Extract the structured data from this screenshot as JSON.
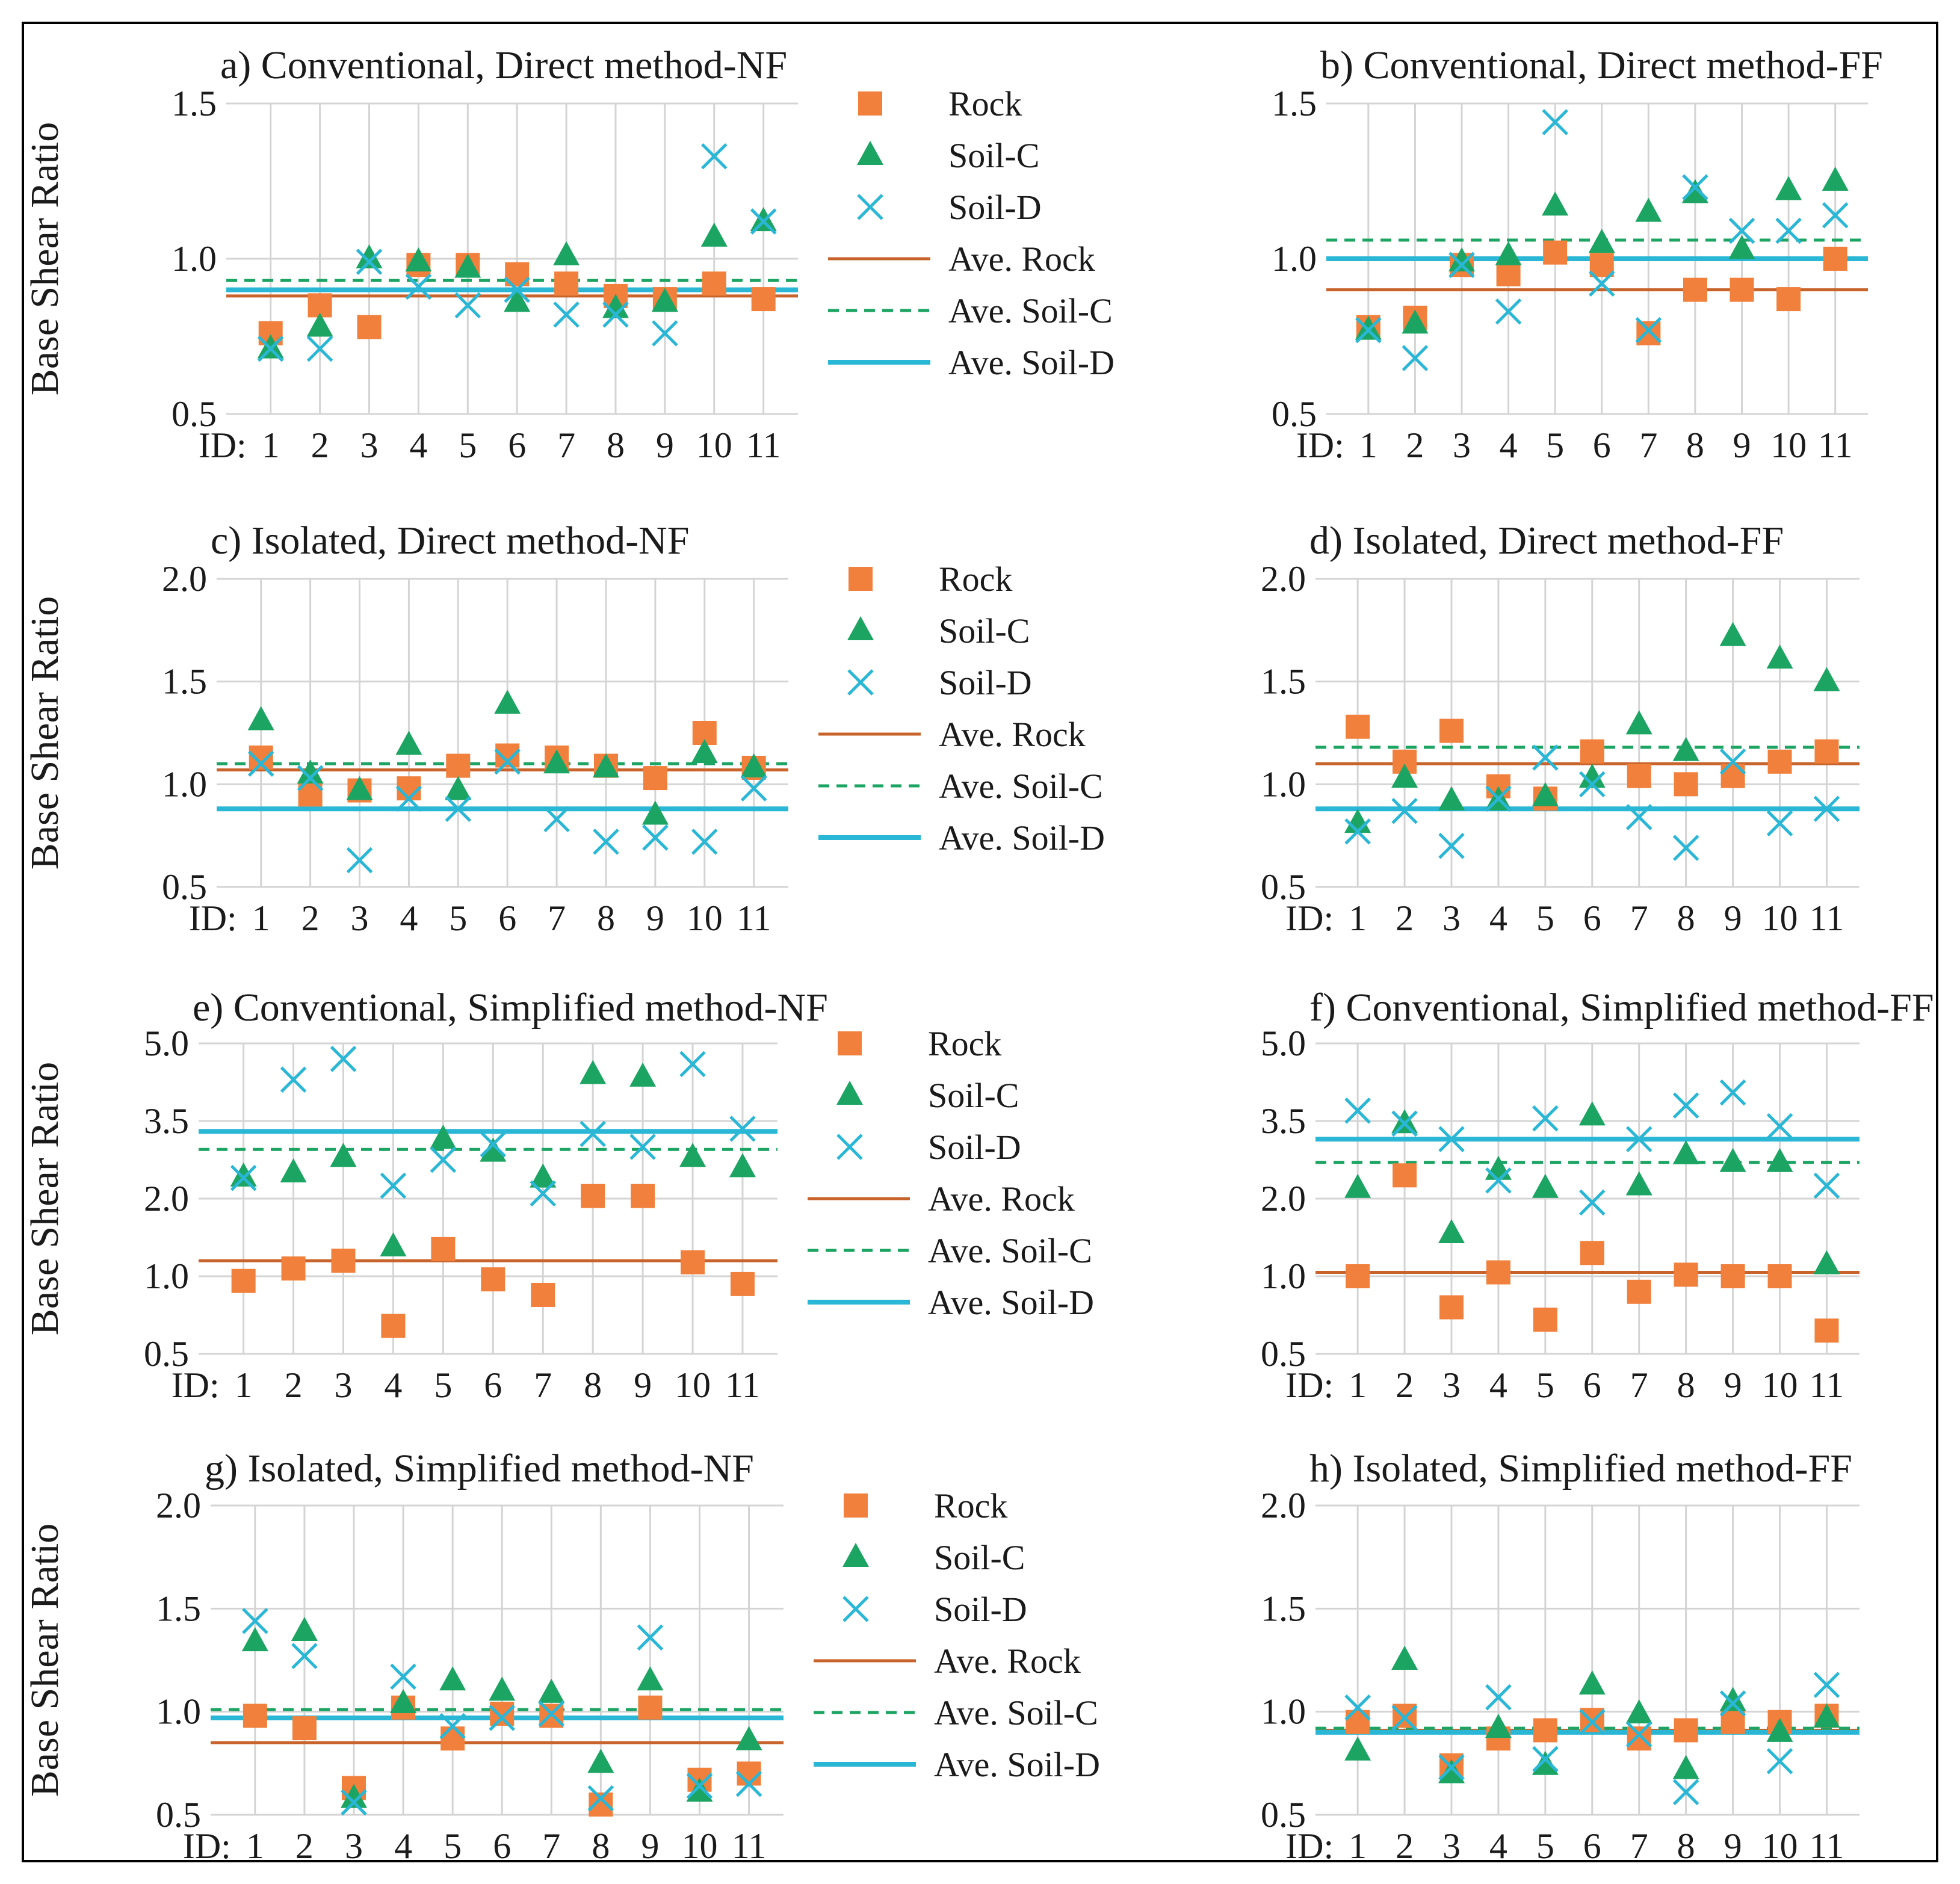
{
  "colors": {
    "rock": "#f0803c",
    "soilC": "#1ca463",
    "soilD": "#2ab7d6",
    "aveRock": "#c8642b",
    "grid": "#d4d4d4"
  },
  "legend_labels": [
    "Rock",
    "Soil-C",
    "Soil-D",
    "Ave. Rock",
    "Ave. Soil-C",
    "Ave. Soil-D"
  ],
  "chart_data": [
    {
      "type": "scatter",
      "title": "a) Conventional, Direct method-NF",
      "ylabel": "Base Shear Ratio",
      "ylim": [
        0.5,
        1.5
      ],
      "yticks": [
        "0.5",
        "1.0",
        "1.5"
      ],
      "xlabel_prefix": "ID:",
      "categories": [
        "1",
        "2",
        "3",
        "4",
        "5",
        "6",
        "7",
        "8",
        "9",
        "10",
        "11"
      ],
      "series": [
        {
          "name": "Rock",
          "marker": "square",
          "values": [
            0.76,
            0.85,
            0.78,
            0.98,
            0.98,
            0.95,
            0.92,
            0.88,
            0.87,
            0.92,
            0.87
          ]
        },
        {
          "name": "Soil-C",
          "marker": "triangle",
          "values": [
            0.71,
            0.78,
            1.0,
            0.99,
            0.97,
            0.86,
            1.01,
            0.84,
            0.86,
            1.07,
            1.12
          ]
        },
        {
          "name": "Soil-D",
          "marker": "x",
          "values": [
            0.71,
            0.71,
            0.99,
            0.91,
            0.85,
            0.9,
            0.82,
            0.82,
            0.76,
            1.33,
            1.12
          ]
        }
      ],
      "averages": {
        "Ave. Rock": 0.88,
        "Ave. Soil-C": 0.93,
        "Ave. Soil-D": 0.9
      },
      "legend": true
    },
    {
      "type": "scatter",
      "title": "b) Conventional, Direct method-FF",
      "ylabel": "",
      "ylim": [
        0.5,
        1.5
      ],
      "yticks": [
        "0.5",
        "1.0",
        "1.5"
      ],
      "xlabel_prefix": "ID:",
      "categories": [
        "1",
        "2",
        "3",
        "4",
        "5",
        "6",
        "7",
        "8",
        "9",
        "10",
        "11"
      ],
      "series": [
        {
          "name": "Rock",
          "marker": "square",
          "values": [
            0.78,
            0.81,
            0.98,
            0.95,
            1.02,
            0.98,
            0.76,
            0.9,
            0.9,
            0.87,
            1.0
          ]
        },
        {
          "name": "Soil-C",
          "marker": "triangle",
          "values": [
            0.77,
            0.79,
            0.99,
            1.01,
            1.17,
            1.05,
            1.15,
            1.21,
            1.03,
            1.22,
            1.25
          ]
        },
        {
          "name": "Soil-D",
          "marker": "x",
          "values": [
            0.77,
            0.68,
            0.98,
            0.83,
            1.44,
            0.92,
            0.77,
            1.23,
            1.09,
            1.09,
            1.14
          ]
        }
      ],
      "averages": {
        "Ave. Rock": 0.9,
        "Ave. Soil-C": 1.06,
        "Ave. Soil-D": 1.0
      },
      "legend": false
    },
    {
      "type": "scatter",
      "title": "c) Isolated, Direct method-NF",
      "ylabel": "Base Shear Ratio",
      "ylim": [
        0.5,
        2.0
      ],
      "yticks": [
        "0.5",
        "1.0",
        "1.5",
        "2.0"
      ],
      "xlabel_prefix": "ID:",
      "categories": [
        "1",
        "2",
        "3",
        "4",
        "5",
        "6",
        "7",
        "8",
        "9",
        "10",
        "11"
      ],
      "series": [
        {
          "name": "Rock",
          "marker": "square",
          "values": [
            1.13,
            0.95,
            0.97,
            0.98,
            1.09,
            1.14,
            1.13,
            1.09,
            1.03,
            1.25,
            1.08
          ]
        },
        {
          "name": "Soil-C",
          "marker": "triangle",
          "values": [
            1.31,
            1.05,
            0.97,
            1.19,
            0.97,
            1.39,
            1.1,
            1.08,
            0.85,
            1.15,
            1.08
          ]
        },
        {
          "name": "Soil-D",
          "marker": "x",
          "values": [
            1.1,
            1.03,
            0.63,
            0.93,
            0.88,
            1.11,
            0.83,
            0.72,
            0.74,
            0.72,
            0.98
          ]
        }
      ],
      "averages": {
        "Ave. Rock": 1.07,
        "Ave. Soil-C": 1.1,
        "Ave. Soil-D": 0.88
      },
      "legend": true
    },
    {
      "type": "scatter",
      "title": "d) Isolated, Direct method-FF",
      "ylabel": "",
      "ylim": [
        0.5,
        2.0
      ],
      "yticks": [
        "0.5",
        "1.0",
        "1.5",
        "2.0"
      ],
      "xlabel_prefix": "ID:",
      "categories": [
        "1",
        "2",
        "3",
        "4",
        "5",
        "6",
        "7",
        "8",
        "9",
        "10",
        "11"
      ],
      "series": [
        {
          "name": "Rock",
          "marker": "square",
          "values": [
            1.28,
            1.11,
            1.26,
            0.99,
            0.93,
            1.16,
            1.04,
            1.0,
            1.04,
            1.11,
            1.16
          ]
        },
        {
          "name": "Soil-C",
          "marker": "triangle",
          "values": [
            0.81,
            1.03,
            0.92,
            0.92,
            0.94,
            1.03,
            1.29,
            1.16,
            1.72,
            1.61,
            1.5
          ]
        },
        {
          "name": "Soil-D",
          "marker": "x",
          "values": [
            0.77,
            0.87,
            0.7,
            0.93,
            1.13,
            1.0,
            0.84,
            0.69,
            1.11,
            0.81,
            0.88
          ]
        }
      ],
      "averages": {
        "Ave. Rock": 1.1,
        "Ave. Soil-C": 1.18,
        "Ave. Soil-D": 0.88
      },
      "legend": false
    },
    {
      "type": "scatter",
      "title": "e) Conventional, Simplified method-NF",
      "ylabel": "Base Shear Ratio",
      "ylim": [
        0.5,
        5.0
      ],
      "yticks": [
        "0.5",
        "1.0",
        "2.0",
        "3.5",
        "5.0"
      ],
      "xlabel_prefix": "ID:",
      "categories": [
        "1",
        "2",
        "3",
        "4",
        "5",
        "6",
        "7",
        "8",
        "9",
        "10",
        "11"
      ],
      "series": [
        {
          "name": "Rock",
          "marker": "square",
          "values": [
            0.97,
            1.1,
            1.2,
            0.68,
            1.35,
            0.98,
            0.88,
            2.05,
            2.05,
            1.18,
            0.95
          ]
        },
        {
          "name": "Soil-C",
          "marker": "triangle",
          "values": [
            2.42,
            2.5,
            2.8,
            1.38,
            3.15,
            2.9,
            2.4,
            4.4,
            4.35,
            2.8,
            2.6
          ]
        },
        {
          "name": "Soil-D",
          "marker": "x",
          "values": [
            2.4,
            4.3,
            4.7,
            2.25,
            2.75,
            3.05,
            2.1,
            3.25,
            3.0,
            4.6,
            3.35
          ]
        }
      ],
      "averages": {
        "Ave. Rock": 1.2,
        "Ave. Soil-C": 2.95,
        "Ave. Soil-D": 3.3
      },
      "legend": true
    },
    {
      "type": "scatter",
      "title": "f) Conventional, Simplified method-FF",
      "ylabel": "",
      "ylim": [
        0.5,
        5.0
      ],
      "yticks": [
        "0.5",
        "1.0",
        "2.0",
        "3.5",
        "5.0"
      ],
      "xlabel_prefix": "ID:",
      "categories": [
        "1",
        "2",
        "3",
        "4",
        "5",
        "6",
        "7",
        "8",
        "9",
        "10",
        "11"
      ],
      "series": [
        {
          "name": "Rock",
          "marker": "square",
          "values": [
            1.0,
            2.45,
            0.8,
            1.05,
            0.72,
            1.3,
            0.9,
            1.02,
            1.0,
            1.0,
            0.65
          ]
        },
        {
          "name": "Soil-C",
          "marker": "triangle",
          "values": [
            2.2,
            3.45,
            1.55,
            2.55,
            2.2,
            3.6,
            2.25,
            2.85,
            2.7,
            2.7,
            1.15
          ]
        },
        {
          "name": "Soil-D",
          "marker": "x",
          "values": [
            3.7,
            3.45,
            3.15,
            2.35,
            3.55,
            1.95,
            3.15,
            3.8,
            4.05,
            3.4,
            2.25
          ]
        }
      ],
      "averages": {
        "Ave. Rock": 1.05,
        "Ave. Soil-C": 2.7,
        "Ave. Soil-D": 3.15
      },
      "legend": false
    },
    {
      "type": "scatter",
      "title": "g) Isolated, Simplified method-NF",
      "ylabel": "Base Shear Ratio",
      "ylim": [
        0.5,
        2.0
      ],
      "yticks": [
        "0.5",
        "1.0",
        "1.5",
        "2.0"
      ],
      "xlabel_prefix": "ID:",
      "categories": [
        "1",
        "2",
        "3",
        "4",
        "5",
        "6",
        "7",
        "8",
        "9",
        "10",
        "11"
      ],
      "series": [
        {
          "name": "Rock",
          "marker": "square",
          "values": [
            0.98,
            0.92,
            0.63,
            1.02,
            0.87,
            0.99,
            0.98,
            0.55,
            1.02,
            0.67,
            0.7
          ]
        },
        {
          "name": "Soil-C",
          "marker": "triangle",
          "values": [
            1.34,
            1.39,
            0.58,
            1.04,
            1.15,
            1.1,
            1.09,
            0.75,
            1.15,
            0.61,
            0.86
          ]
        },
        {
          "name": "Soil-D",
          "marker": "x",
          "values": [
            1.44,
            1.27,
            0.56,
            1.17,
            0.93,
            0.97,
            0.99,
            0.58,
            1.36,
            0.64,
            0.65
          ]
        }
      ],
      "averages": {
        "Ave. Rock": 0.85,
        "Ave. Soil-C": 1.01,
        "Ave. Soil-D": 0.97
      },
      "legend": true
    },
    {
      "type": "scatter",
      "title": "h) Isolated, Simplified method-FF",
      "ylabel": "",
      "ylim": [
        0.5,
        2.0
      ],
      "yticks": [
        "0.5",
        "1.0",
        "1.5",
        "2.0"
      ],
      "xlabel_prefix": "ID:",
      "categories": [
        "1",
        "2",
        "3",
        "4",
        "5",
        "6",
        "7",
        "8",
        "9",
        "10",
        "11"
      ],
      "series": [
        {
          "name": "Rock",
          "marker": "square",
          "values": [
            0.95,
            0.98,
            0.74,
            0.87,
            0.91,
            0.96,
            0.87,
            0.91,
            0.95,
            0.95,
            0.98
          ]
        },
        {
          "name": "Soil-C",
          "marker": "triangle",
          "values": [
            0.81,
            1.25,
            0.7,
            0.92,
            0.74,
            1.13,
            0.99,
            0.72,
            1.05,
            0.9,
            0.97
          ]
        },
        {
          "name": "Soil-D",
          "marker": "x",
          "values": [
            1.02,
            0.97,
            0.73,
            1.07,
            0.77,
            0.95,
            0.89,
            0.61,
            1.04,
            0.76,
            1.13
          ]
        }
      ],
      "averages": {
        "Ave. Rock": 0.91,
        "Ave. Soil-C": 0.92,
        "Ave. Soil-D": 0.9
      },
      "legend": false
    }
  ]
}
